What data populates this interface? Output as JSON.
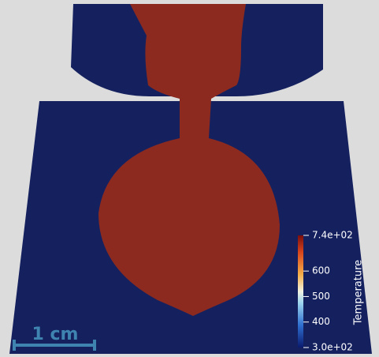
{
  "colorbar": {
    "title": "Temperature",
    "range": [
      300,
      740
    ],
    "ticks": [
      {
        "value": 740,
        "label": "7.4e+02"
      },
      600,
      500,
      400,
      {
        "value": 300,
        "label": "3.0e+02"
      }
    ]
  },
  "scale_bar": {
    "label": "1 cm"
  }
}
